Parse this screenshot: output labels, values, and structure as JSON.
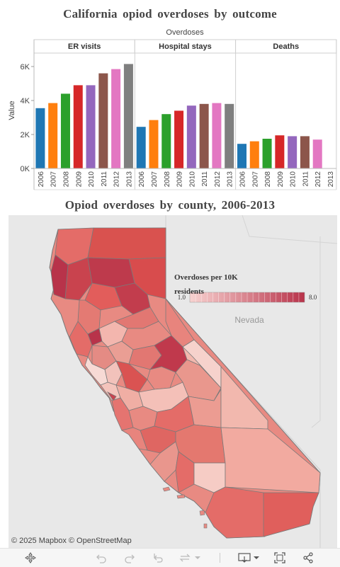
{
  "chart_data": [
    {
      "type": "bar",
      "title": "California opiod overdoses by outcome",
      "column_header": "Overdoses",
      "ylabel": "Value",
      "ylim": [
        0,
        6500
      ],
      "yticks": [
        0,
        2000,
        4000,
        6000
      ],
      "ytick_labels": [
        "0K",
        "2K",
        "4K",
        "6K"
      ],
      "grid": false,
      "panels": [
        {
          "name": "ER visits",
          "categories": [
            "2006",
            "2007",
            "2008",
            "2009",
            "2010",
            "2011",
            "2012",
            "2013"
          ],
          "values": [
            3550,
            3850,
            4400,
            4900,
            4900,
            5600,
            5850,
            6150
          ]
        },
        {
          "name": "Hospital stays",
          "categories": [
            "2006",
            "2007",
            "2008",
            "2009",
            "2010",
            "2011",
            "2012",
            "2013"
          ],
          "values": [
            2450,
            2850,
            3200,
            3400,
            3700,
            3800,
            3850,
            3800
          ]
        },
        {
          "name": "Deaths",
          "categories": [
            "2006",
            "2007",
            "2008",
            "2009",
            "2010",
            "2011",
            "2012",
            "2013"
          ],
          "values": [
            1450,
            1600,
            1750,
            1950,
            1900,
            1900,
            1700,
            null
          ]
        }
      ],
      "colors": [
        "#1f77b4",
        "#ff7f0e",
        "#2ca02c",
        "#d62728",
        "#9467bd",
        "#8c564b",
        "#e377c2",
        "#7f7f7f"
      ]
    },
    {
      "type": "choropleth",
      "title": "Opiod overdoses by county, 2006-2013",
      "legend": {
        "title": "Overdoses per 10K residents",
        "min_label": "1.0",
        "max_label": "8.0",
        "min": 1.0,
        "max": 8.0,
        "low_color": "#f8d2d0",
        "high_color": "#b8334a"
      },
      "place_label": "Nevada",
      "attribution": "© 2025 Mapbox © OpenStreetMap"
    }
  ],
  "toolbar": {
    "icons": [
      "move-icon",
      "undo-icon",
      "redo-icon",
      "revert-icon",
      "refresh-icon",
      "download-icon",
      "fullscreen-icon",
      "share-icon"
    ]
  }
}
